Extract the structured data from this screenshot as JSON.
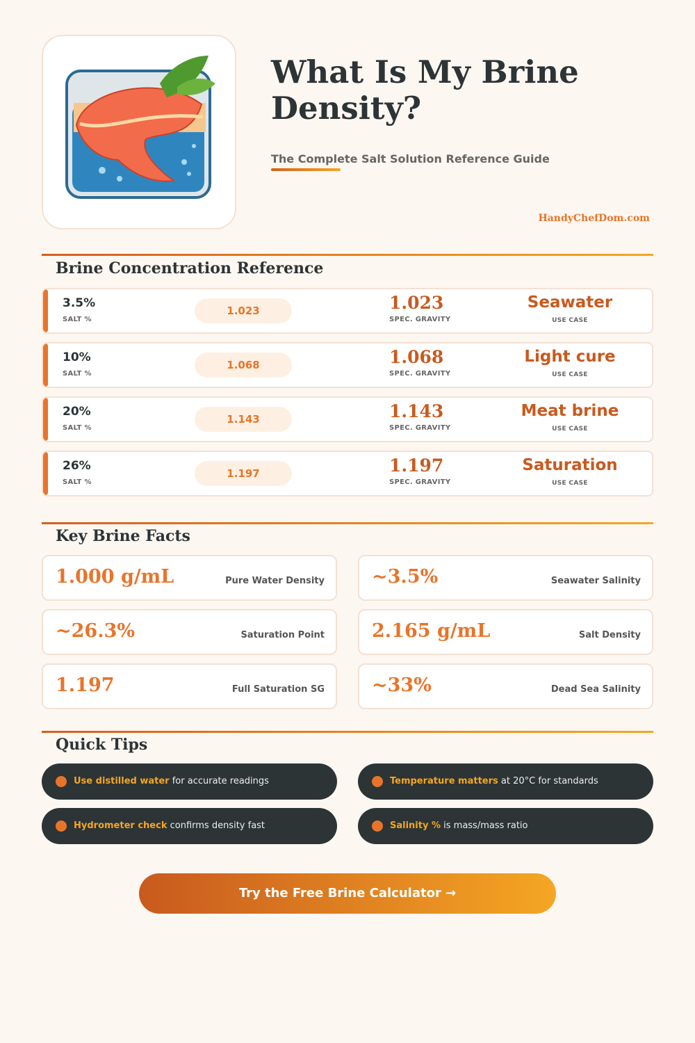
{
  "header": {
    "title": "What Is My Brine Density?",
    "subtitle": "The Complete Salt Solution Reference Guide",
    "site": "HandyChefDom.com",
    "icon": "salmon-in-brine-illustration"
  },
  "reference": {
    "title": "Brine Concentration Reference",
    "salt_label": "SALT %",
    "sg_label": "SPEC. GRAVITY",
    "use_label": "USE CASE",
    "rows": [
      {
        "salt": "3.5%",
        "pill": "1.023",
        "sg": "1.023",
        "use": "Seawater"
      },
      {
        "salt": "10%",
        "pill": "1.068",
        "sg": "1.068",
        "use": "Light cure"
      },
      {
        "salt": "20%",
        "pill": "1.143",
        "sg": "1.143",
        "use": "Meat brine"
      },
      {
        "salt": "26%",
        "pill": "1.197",
        "sg": "1.197",
        "use": "Saturation"
      }
    ]
  },
  "facts": {
    "title": "Key Brine Facts",
    "items": [
      {
        "value": "1.000 g/mL",
        "label": "Pure Water Density"
      },
      {
        "value": "~3.5%",
        "label": "Seawater Salinity"
      },
      {
        "value": "~26.3%",
        "label": "Saturation Point"
      },
      {
        "value": "2.165 g/mL",
        "label": "Salt Density"
      },
      {
        "value": "1.197",
        "label": "Full Saturation SG"
      },
      {
        "value": "~33%",
        "label": "Dead Sea Salinity"
      }
    ]
  },
  "tips": {
    "title": "Quick Tips",
    "items": [
      {
        "bold": "Use distilled water",
        "text": " for accurate readings"
      },
      {
        "bold": "Temperature matters",
        "text": " at 20°C for standards"
      },
      {
        "bold": "Hydrometer check",
        "text": " confirms density fast"
      },
      {
        "bold": "Salinity %",
        "text": " is mass/mass ratio"
      }
    ]
  },
  "cta": {
    "label": "Try the Free Brine Calculator →"
  },
  "colors": {
    "accent": "#e8742a",
    "accent_dark": "#c85a1e",
    "gold": "#f5a623",
    "dark": "#2d3436",
    "background": "#fdf7f1"
  }
}
